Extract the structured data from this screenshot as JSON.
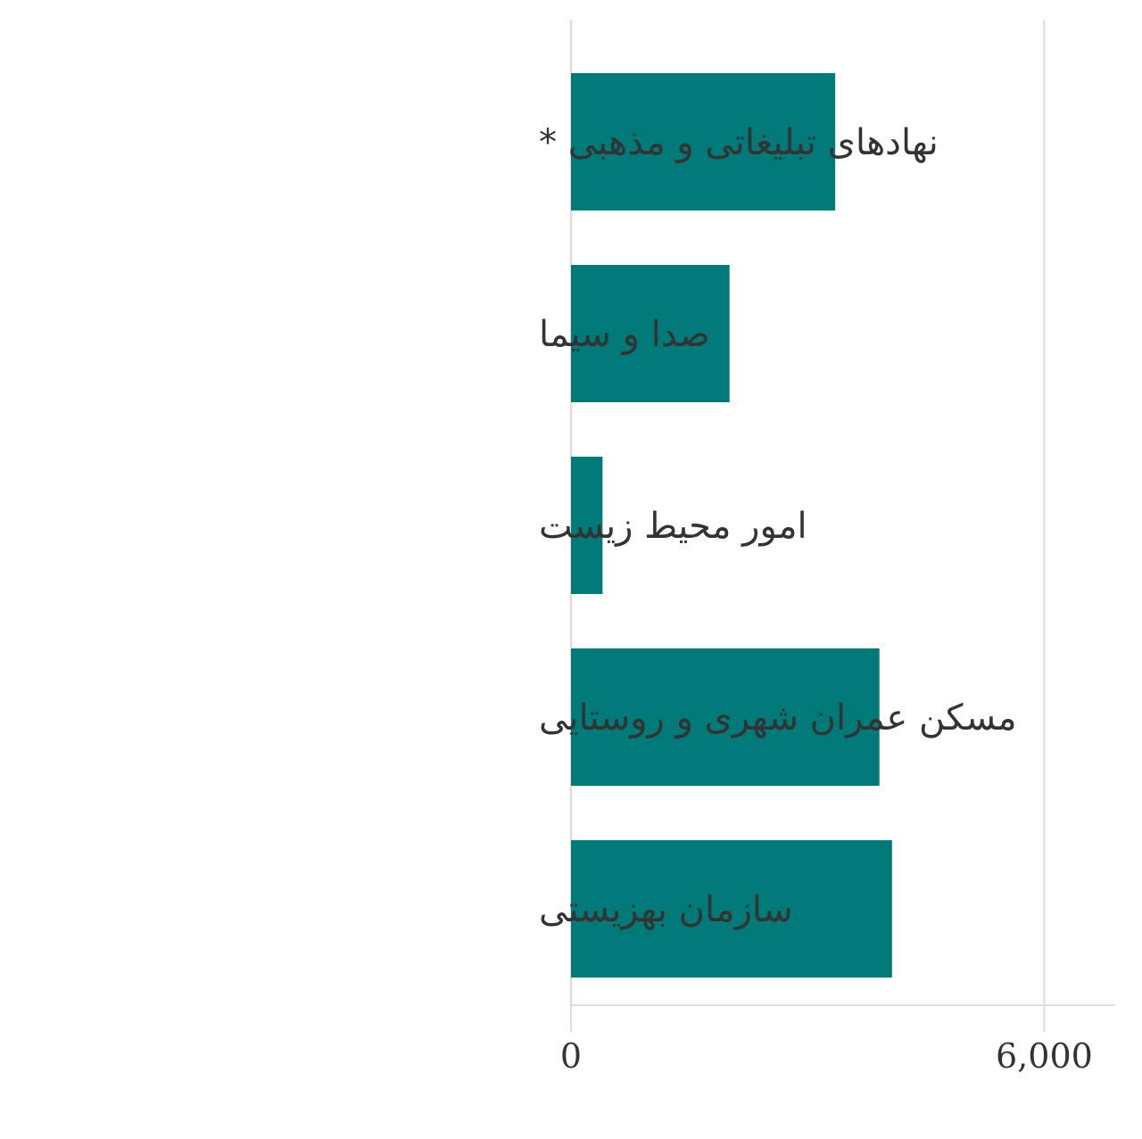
{
  "chart_data": {
    "type": "bar",
    "orientation": "horizontal",
    "title": "",
    "xlabel": "",
    "ylabel": "",
    "categories": [
      "نهادهای تبلیغاتی و مذهبی *",
      "صدا و سیما",
      "امور محیط زیست",
      "مسکن عمران شهری و روستایی",
      "سازمان بهزیستی"
    ],
    "values": [
      3350,
      2010,
      400,
      3910,
      4070
    ],
    "xlim": [
      0,
      6900
    ],
    "x_ticks": [
      0,
      6000
    ],
    "x_tick_labels": [
      "0",
      "6,000"
    ],
    "grid": true,
    "bar_color": "#007a78",
    "grid_color": "#dddddd",
    "text_color": "#333333"
  }
}
